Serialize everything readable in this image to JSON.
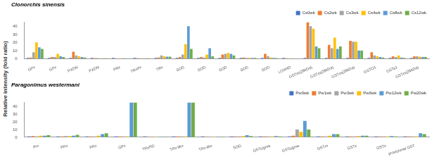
{
  "chart_data": [
    {
      "type": "bar",
      "title": "Clonorchis sinensis",
      "y_label": "Relative intensity (fold ratio)",
      "categories": [
        "GPx",
        "GPx",
        "PXDN",
        "PXDN",
        "PRx",
        "TRxPx",
        "TRx",
        "SOD",
        "SOD",
        "SOD",
        "SOD",
        "SOD",
        "LOXHD",
        "GSTm(28kDa)",
        "GSTm(28kDa)",
        "GSTm(28kDa)",
        "GSTO1",
        "GSTs1",
        "GSTm(26kDa)"
      ],
      "series": [
        {
          "name": "Cs0wk",
          "color": "#4472c4",
          "values": [
            1,
            1,
            1,
            1,
            1,
            1,
            1,
            1,
            1,
            1,
            1,
            1,
            1,
            1,
            1,
            1,
            1,
            1,
            1
          ]
        },
        {
          "name": "Cs2wk",
          "color": "#ed7d31",
          "values": [
            1.5,
            2,
            8.5,
            0.8,
            0.5,
            0.8,
            1.5,
            2,
            2,
            5,
            1.5,
            6,
            0.5,
            45,
            17,
            22,
            8,
            3,
            3
          ]
        },
        {
          "name": "Cs3wk",
          "color": "#a5a5a5",
          "values": [
            8,
            2,
            4,
            0.7,
            0.4,
            0.5,
            4,
            5,
            1.5,
            6,
            1,
            3,
            0.4,
            40,
            13,
            21,
            4,
            2,
            3
          ]
        },
        {
          "name": "Cs4wk",
          "color": "#ffc000",
          "values": [
            20,
            6,
            3,
            0.6,
            0.5,
            0.6,
            3,
            18,
            5,
            7,
            1,
            1.5,
            0.5,
            37,
            26,
            21,
            3,
            4,
            2.5
          ]
        },
        {
          "name": "Cs8wk",
          "color": "#5b9bd5",
          "values": [
            14,
            3,
            2,
            0.5,
            0.6,
            0.6,
            2.5,
            40,
            13,
            6,
            1,
            1,
            0.4,
            15,
            12,
            10,
            2,
            1.5,
            2
          ]
        },
        {
          "name": "Cs12wk",
          "color": "#70ad47",
          "values": [
            12,
            2,
            1.5,
            0.5,
            0.4,
            0.5,
            2.5,
            12,
            3,
            4,
            1,
            0.8,
            0.4,
            13,
            15,
            10,
            1.5,
            1,
            2
          ]
        }
      ],
      "ylim": [
        0,
        45
      ],
      "yticks": [
        0,
        10,
        20,
        30,
        40
      ],
      "grid": false,
      "legend": "top right"
    },
    {
      "type": "bar",
      "title": "Paragonimus westermani",
      "categories": [
        "Prx",
        "PRx",
        "PRx",
        "GPx",
        "TRxRD",
        "TRx-like",
        "TRx-like",
        "SOD",
        "GSTsigma",
        "GSTsigma",
        "GSTm",
        "GSTz",
        "GSTo",
        "provisional GST"
      ],
      "series": [
        {
          "name": "Pw0wk",
          "color": "#4472c4",
          "values": [
            1,
            1,
            1,
            1,
            1,
            1,
            1,
            1,
            1,
            1,
            1,
            1,
            1,
            1
          ]
        },
        {
          "name": "Pw1wk",
          "color": "#ed7d31",
          "values": [
            1.5,
            1,
            1,
            1,
            0.5,
            1,
            0.5,
            1,
            1,
            2,
            1,
            1,
            1,
            1
          ]
        },
        {
          "name": "Pw3wk",
          "color": "#a5a5a5",
          "values": [
            1,
            1.5,
            1,
            1,
            0.5,
            1,
            0.5,
            1,
            1,
            10,
            1,
            1,
            1,
            1
          ]
        },
        {
          "name": "Pw6wk",
          "color": "#ffc000",
          "values": [
            2,
            1.5,
            2,
            1,
            0.5,
            1,
            0.5,
            1.5,
            1,
            7,
            2,
            1.5,
            1,
            1
          ]
        },
        {
          "name": "Pw12wk",
          "color": "#5b9bd5",
          "values": [
            2,
            2,
            4,
            45,
            0.5,
            45,
            0.5,
            2.5,
            1.5,
            21,
            4,
            2,
            1.5,
            5
          ]
        },
        {
          "name": "Pw20wk",
          "color": "#70ad47",
          "values": [
            2.5,
            3,
            5,
            45,
            0.5,
            45,
            0.5,
            1.5,
            1,
            10,
            4,
            2,
            1,
            4
          ]
        }
      ],
      "ylim": [
        0,
        45
      ],
      "yticks": [
        0,
        10,
        20,
        30,
        40
      ],
      "grid": false,
      "legend": "top right"
    }
  ]
}
